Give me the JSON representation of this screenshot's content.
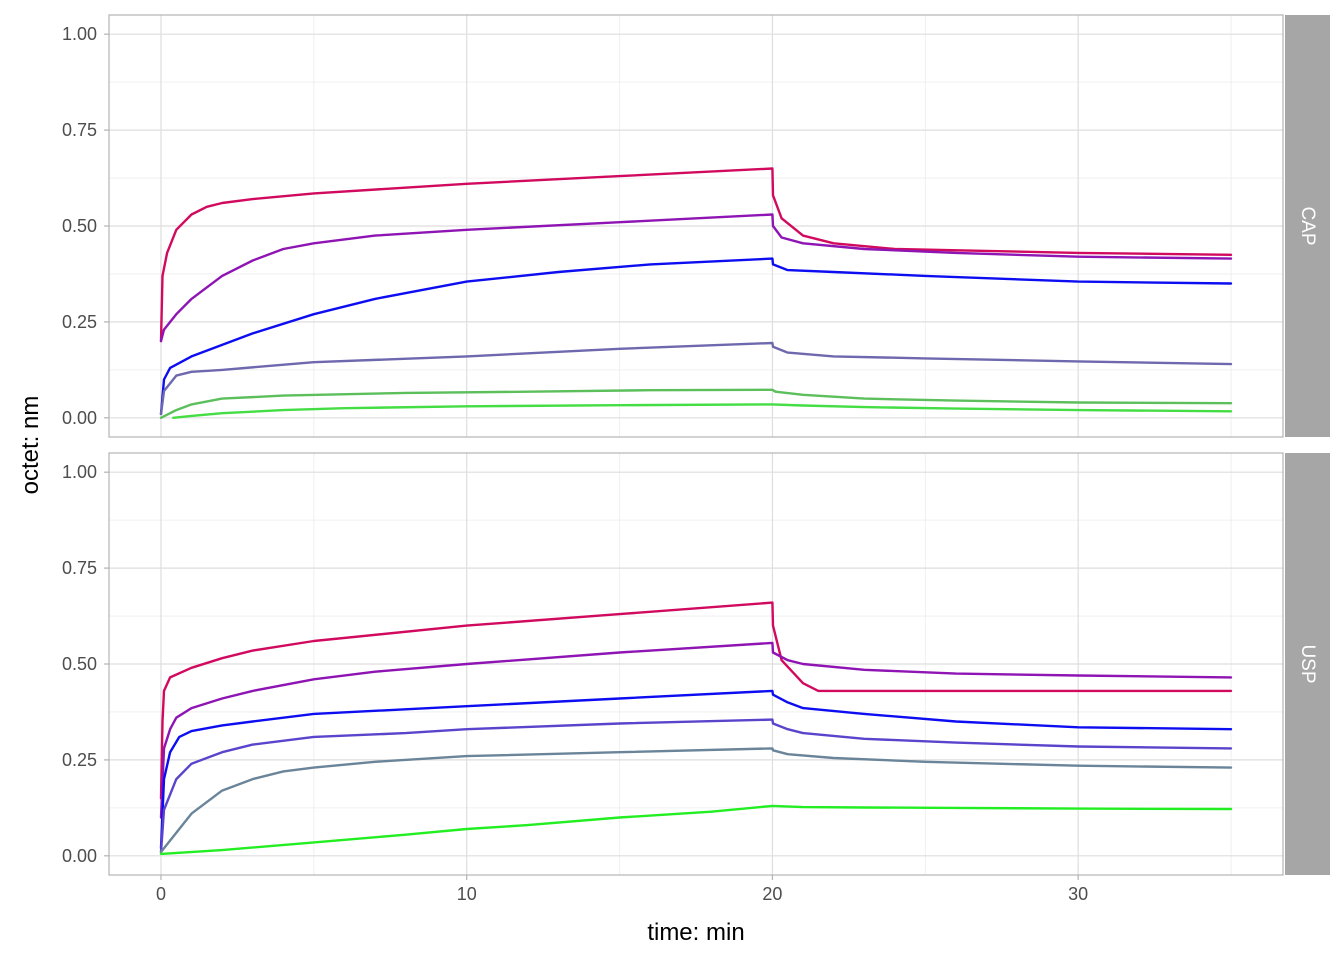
{
  "chart_data": {
    "type": "line",
    "xlabel": "time: min",
    "ylabel": "octet: nm",
    "xlim": [
      -1.7,
      36.7
    ],
    "ylim": [
      -0.05,
      1.05
    ],
    "x_ticks": [
      0,
      10,
      20,
      30
    ],
    "y_ticks": [
      0.0,
      0.25,
      0.5,
      0.75,
      1.0
    ],
    "y_tick_labels": [
      "0.00",
      "0.25",
      "0.50",
      "0.75",
      "1.00"
    ],
    "grid": true,
    "legend": "none",
    "panels": [
      {
        "strip": "CAP",
        "series": [
          {
            "color": "#D10A5F",
            "points": [
              [
                0,
                0.2
              ],
              [
                0.05,
                0.37
              ],
              [
                0.2,
                0.43
              ],
              [
                0.5,
                0.49
              ],
              [
                1,
                0.53
              ],
              [
                1.5,
                0.55
              ],
              [
                2,
                0.56
              ],
              [
                3,
                0.57
              ],
              [
                5,
                0.585
              ],
              [
                10,
                0.61
              ],
              [
                15,
                0.63
              ],
              [
                20,
                0.65
              ],
              [
                20.02,
                0.58
              ],
              [
                20.3,
                0.52
              ],
              [
                21,
                0.475
              ],
              [
                22,
                0.455
              ],
              [
                24,
                0.44
              ],
              [
                27,
                0.435
              ],
              [
                30,
                0.43
              ],
              [
                35,
                0.425
              ]
            ]
          },
          {
            "color": "#8E14B4",
            "points": [
              [
                0,
                0.2
              ],
              [
                0.1,
                0.23
              ],
              [
                0.5,
                0.27
              ],
              [
                1,
                0.31
              ],
              [
                2,
                0.37
              ],
              [
                3,
                0.41
              ],
              [
                4,
                0.44
              ],
              [
                5,
                0.455
              ],
              [
                7,
                0.475
              ],
              [
                10,
                0.49
              ],
              [
                15,
                0.51
              ],
              [
                20,
                0.53
              ],
              [
                20.02,
                0.5
              ],
              [
                20.3,
                0.47
              ],
              [
                21,
                0.455
              ],
              [
                23,
                0.44
              ],
              [
                26,
                0.43
              ],
              [
                30,
                0.42
              ],
              [
                35,
                0.415
              ]
            ]
          },
          {
            "color": "#0D0DF2",
            "points": [
              [
                0,
                0.01
              ],
              [
                0.1,
                0.1
              ],
              [
                0.3,
                0.13
              ],
              [
                1,
                0.16
              ],
              [
                2,
                0.19
              ],
              [
                3,
                0.22
              ],
              [
                5,
                0.27
              ],
              [
                7,
                0.31
              ],
              [
                10,
                0.355
              ],
              [
                13,
                0.38
              ],
              [
                16,
                0.4
              ],
              [
                20,
                0.415
              ],
              [
                20.02,
                0.4
              ],
              [
                20.5,
                0.385
              ],
              [
                22,
                0.38
              ],
              [
                25,
                0.37
              ],
              [
                30,
                0.355
              ],
              [
                35,
                0.35
              ]
            ]
          },
          {
            "color": "#6E68AE",
            "points": [
              [
                0,
                0.01
              ],
              [
                0.1,
                0.07
              ],
              [
                0.5,
                0.11
              ],
              [
                1,
                0.12
              ],
              [
                2,
                0.125
              ],
              [
                5,
                0.145
              ],
              [
                10,
                0.16
              ],
              [
                15,
                0.18
              ],
              [
                20,
                0.195
              ],
              [
                20.02,
                0.185
              ],
              [
                20.5,
                0.17
              ],
              [
                22,
                0.16
              ],
              [
                25,
                0.155
              ],
              [
                30,
                0.147
              ],
              [
                35,
                0.14
              ]
            ]
          },
          {
            "color": "#5CBF5C",
            "points": [
              [
                0,
                0.0
              ],
              [
                0.5,
                0.02
              ],
              [
                1,
                0.035
              ],
              [
                2,
                0.05
              ],
              [
                4,
                0.058
              ],
              [
                8,
                0.065
              ],
              [
                12,
                0.068
              ],
              [
                16,
                0.072
              ],
              [
                20,
                0.073
              ],
              [
                20.1,
                0.068
              ],
              [
                21,
                0.06
              ],
              [
                23,
                0.05
              ],
              [
                26,
                0.045
              ],
              [
                30,
                0.04
              ],
              [
                35,
                0.038
              ]
            ]
          },
          {
            "color": "#44DD44",
            "points": [
              [
                0.4,
                0.0
              ],
              [
                1,
                0.005
              ],
              [
                2,
                0.012
              ],
              [
                4,
                0.02
              ],
              [
                6,
                0.025
              ],
              [
                10,
                0.03
              ],
              [
                15,
                0.033
              ],
              [
                20,
                0.035
              ],
              [
                21,
                0.032
              ],
              [
                23,
                0.028
              ],
              [
                26,
                0.024
              ],
              [
                30,
                0.02
              ],
              [
                35,
                0.017
              ]
            ]
          }
        ]
      },
      {
        "strip": "USP",
        "series": [
          {
            "color": "#D10A5F",
            "points": [
              [
                0,
                0.15
              ],
              [
                0.05,
                0.35
              ],
              [
                0.1,
                0.43
              ],
              [
                0.3,
                0.465
              ],
              [
                1,
                0.49
              ],
              [
                2,
                0.515
              ],
              [
                3,
                0.535
              ],
              [
                5,
                0.56
              ],
              [
                10,
                0.6
              ],
              [
                15,
                0.63
              ],
              [
                20,
                0.66
              ],
              [
                20.02,
                0.6
              ],
              [
                20.3,
                0.51
              ],
              [
                21,
                0.45
              ],
              [
                21.5,
                0.43
              ],
              [
                23,
                0.43
              ],
              [
                30,
                0.43
              ],
              [
                35,
                0.43
              ]
            ]
          },
          {
            "color": "#8E14B4",
            "points": [
              [
                0,
                0.1
              ],
              [
                0.1,
                0.28
              ],
              [
                0.3,
                0.33
              ],
              [
                0.5,
                0.36
              ],
              [
                1,
                0.385
              ],
              [
                2,
                0.41
              ],
              [
                3,
                0.43
              ],
              [
                5,
                0.46
              ],
              [
                7,
                0.48
              ],
              [
                10,
                0.5
              ],
              [
                15,
                0.53
              ],
              [
                20,
                0.555
              ],
              [
                20.02,
                0.53
              ],
              [
                20.5,
                0.51
              ],
              [
                21,
                0.5
              ],
              [
                23,
                0.485
              ],
              [
                26,
                0.475
              ],
              [
                30,
                0.47
              ],
              [
                35,
                0.465
              ]
            ]
          },
          {
            "color": "#0D0DF2",
            "points": [
              [
                0,
                0.02
              ],
              [
                0.1,
                0.2
              ],
              [
                0.3,
                0.27
              ],
              [
                0.6,
                0.31
              ],
              [
                1,
                0.325
              ],
              [
                2,
                0.34
              ],
              [
                3,
                0.35
              ],
              [
                5,
                0.37
              ],
              [
                10,
                0.39
              ],
              [
                15,
                0.41
              ],
              [
                20,
                0.43
              ],
              [
                20.02,
                0.42
              ],
              [
                20.5,
                0.4
              ],
              [
                21,
                0.385
              ],
              [
                23,
                0.37
              ],
              [
                26,
                0.35
              ],
              [
                30,
                0.335
              ],
              [
                35,
                0.33
              ]
            ]
          },
          {
            "color": "#5A44CC",
            "points": [
              [
                0,
                0.01
              ],
              [
                0.1,
                0.12
              ],
              [
                0.5,
                0.2
              ],
              [
                1,
                0.24
              ],
              [
                2,
                0.27
              ],
              [
                3,
                0.29
              ],
              [
                5,
                0.31
              ],
              [
                8,
                0.32
              ],
              [
                10,
                0.33
              ],
              [
                15,
                0.345
              ],
              [
                20,
                0.355
              ],
              [
                20.02,
                0.345
              ],
              [
                20.5,
                0.33
              ],
              [
                21,
                0.32
              ],
              [
                23,
                0.305
              ],
              [
                26,
                0.295
              ],
              [
                30,
                0.285
              ],
              [
                35,
                0.28
              ]
            ]
          },
          {
            "color": "#6A8499",
            "points": [
              [
                0,
                0.01
              ],
              [
                0.5,
                0.06
              ],
              [
                1,
                0.11
              ],
              [
                2,
                0.17
              ],
              [
                3,
                0.2
              ],
              [
                4,
                0.22
              ],
              [
                5,
                0.23
              ],
              [
                7,
                0.245
              ],
              [
                10,
                0.26
              ],
              [
                15,
                0.27
              ],
              [
                20,
                0.28
              ],
              [
                20.02,
                0.275
              ],
              [
                20.5,
                0.265
              ],
              [
                22,
                0.255
              ],
              [
                25,
                0.245
              ],
              [
                30,
                0.235
              ],
              [
                35,
                0.23
              ]
            ]
          },
          {
            "color": "#22EE22",
            "points": [
              [
                0,
                0.005
              ],
              [
                2,
                0.015
              ],
              [
                5,
                0.035
              ],
              [
                8,
                0.055
              ],
              [
                10,
                0.07
              ],
              [
                12,
                0.08
              ],
              [
                15,
                0.1
              ],
              [
                18,
                0.115
              ],
              [
                20,
                0.13
              ],
              [
                21,
                0.127
              ],
              [
                23,
                0.126
              ],
              [
                26,
                0.125
              ],
              [
                30,
                0.123
              ],
              [
                35,
                0.122
              ]
            ]
          }
        ]
      }
    ]
  }
}
